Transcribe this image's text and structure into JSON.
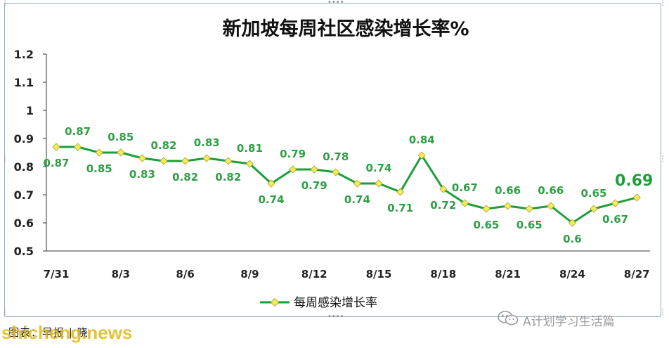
{
  "chart_data": {
    "type": "line",
    "title": "新加坡每周社区感染增长率%",
    "series": [
      {
        "name": "每周感染增长率",
        "x": [
          "7/31",
          "8/1",
          "8/2",
          "8/3",
          "8/4",
          "8/5",
          "8/6",
          "8/7",
          "8/8",
          "8/9",
          "8/10",
          "8/11",
          "8/12",
          "8/13",
          "8/14",
          "8/15",
          "8/16",
          "8/17",
          "8/18",
          "8/19",
          "8/20",
          "8/21",
          "8/22",
          "8/23",
          "8/24",
          "8/25",
          "8/26",
          "8/27"
        ],
        "values": [
          0.87,
          0.87,
          0.85,
          0.85,
          0.83,
          0.82,
          0.82,
          0.83,
          0.82,
          0.81,
          0.74,
          0.79,
          0.79,
          0.78,
          0.74,
          0.74,
          0.71,
          0.84,
          0.72,
          0.67,
          0.65,
          0.66,
          0.65,
          0.66,
          0.6,
          0.65,
          0.67,
          0.69
        ],
        "color": "#1e9e3a",
        "marker_color": "#f2ec5a"
      }
    ],
    "x_tick_labels": [
      "7/31",
      "8/3",
      "8/6",
      "8/9",
      "8/12",
      "8/15",
      "8/18",
      "8/21",
      "8/24",
      "8/27"
    ],
    "y_tick_labels": [
      "0.5",
      "0.6",
      "0.7",
      "0.8",
      "0.9",
      "1",
      "1.1",
      "1.2"
    ],
    "data_labels": [
      "0.87",
      "0.87",
      "0.85",
      "0.85",
      "0.83",
      "0.82",
      "0.82",
      "0.83",
      "0.82",
      "0.81",
      "0.74",
      "0.79",
      "0.79",
      "0.78",
      "0.74",
      "0.74",
      "0.71",
      "0.84",
      "0.72",
      "0.67",
      "0.65",
      "0.66",
      "0.65",
      "0.66",
      "0.6",
      "0.65",
      "0.67",
      "0.69"
    ],
    "label_position": [
      "below",
      "above",
      "below",
      "above",
      "below",
      "above",
      "below",
      "above",
      "below",
      "above",
      "below",
      "above",
      "below",
      "above",
      "below",
      "above",
      "below",
      "above",
      "below",
      "above",
      "below",
      "above",
      "below",
      "above",
      "below",
      "above",
      "below",
      "above"
    ],
    "ylim": [
      0.5,
      1.2
    ],
    "grid": false,
    "legend": "bottom-center",
    "xlabel": "",
    "ylabel": "",
    "highlight_last_label": true
  },
  "caption": "图表：早报 | 晓",
  "watermark": {
    "site": "shicheng.news",
    "wechat_account": "A计划学习生活篇"
  },
  "colors": {
    "line": "#1e9e3a",
    "label": "#2f9e44",
    "marker": "#f2ec5a",
    "frame": "#8ab0c8"
  },
  "icons": [
    "wechat-icon"
  ]
}
